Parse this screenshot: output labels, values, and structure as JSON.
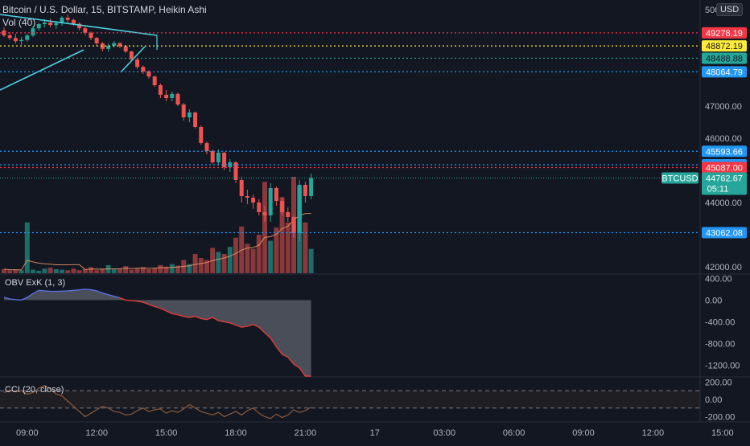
{
  "header": {
    "title": "Bitcoin / U.S. Dollar, 15, BITSTAMP, Heikin Ashi",
    "vol_label": "Vol (40)",
    "currency_badge": "USD"
  },
  "main_axis": {
    "ticks": [
      {
        "value": 50000,
        "label": "50000.00"
      },
      {
        "value": 47000,
        "label": "47000.00"
      },
      {
        "value": 46000,
        "label": "46000.00"
      },
      {
        "value": 44000,
        "label": "44000.00"
      },
      {
        "value": 42000,
        "label": "42000.00"
      }
    ],
    "range": [
      41800,
      50300
    ]
  },
  "price_levels": [
    {
      "value": 49278.19,
      "label": "49278.19",
      "color": "#f23645",
      "text_color": "#ffffff"
    },
    {
      "value": 48872.19,
      "label": "48872.19",
      "color": "#ffeb3b",
      "text_color": "#131722"
    },
    {
      "value": 48488.88,
      "label": "48488.88",
      "color": "#26a69a",
      "text_color": "#131722"
    },
    {
      "value": 48064.79,
      "label": "48064.79",
      "color": "#2196f3",
      "text_color": "#ffffff"
    },
    {
      "value": 45593.66,
      "label": "45593.66",
      "color": "#2196f3",
      "text_color": "#ffffff"
    },
    {
      "value": 45175.35,
      "label": "45175.35",
      "color": "#2196f3",
      "text_color": "#ffffff"
    },
    {
      "value": 45087.0,
      "label": "45087.00",
      "color": "#f23645",
      "text_color": "#ffffff"
    },
    {
      "value": 43062.08,
      "label": "43062.08",
      "color": "#2196f3",
      "text_color": "#ffffff"
    }
  ],
  "last_price": {
    "symbol": "BTCUSD",
    "value": 44762.67,
    "label": "44762.67",
    "countdown": "05:11",
    "color": "#26a69a"
  },
  "x_axis": {
    "ticks": [
      {
        "index": 4,
        "label": "09:00"
      },
      {
        "index": 16,
        "label": "12:00"
      },
      {
        "index": 28,
        "label": "15:00"
      },
      {
        "index": 40,
        "label": "18:00"
      },
      {
        "index": 52,
        "label": "21:00"
      },
      {
        "index": 64,
        "label": "17"
      },
      {
        "index": 76,
        "label": "03:00"
      },
      {
        "index": 88,
        "label": "06:00"
      },
      {
        "index": 100,
        "label": "09:00"
      },
      {
        "index": 112,
        "label": "12:00"
      },
      {
        "index": 124,
        "label": "15:00"
      }
    ]
  },
  "obv": {
    "label": "OBV ExK (1, 3)",
    "range": [
      -1400,
      480
    ],
    "ticks": [
      {
        "value": 400,
        "label": "400.00"
      },
      {
        "value": 0,
        "label": "0.00"
      },
      {
        "value": -400,
        "label": "-400.00"
      },
      {
        "value": -800,
        "label": "-800.00"
      },
      {
        "value": -1200,
        "label": "-1200.00"
      }
    ],
    "values": [
      50,
      20,
      10,
      0,
      50,
      120,
      180,
      170,
      160,
      160,
      165,
      170,
      180,
      190,
      200,
      190,
      170,
      130,
      100,
      70,
      40,
      0,
      -10,
      -20,
      -40,
      -80,
      -120,
      -150,
      -200,
      -250,
      -270,
      -300,
      -320,
      -300,
      -340,
      -360,
      -320,
      -380,
      -400,
      -420,
      -460,
      -500,
      -480,
      -450,
      -500,
      -600,
      -700,
      -860,
      -1000,
      -1050,
      -1180,
      -1250,
      -1400,
      -1400
    ]
  },
  "cci": {
    "label": "CCI (20, close)",
    "range": [
      -260,
      260
    ],
    "ticks": [
      {
        "value": 200,
        "label": "200.00"
      },
      {
        "value": 0,
        "label": "0.00"
      },
      {
        "value": -200,
        "label": "-200.00"
      }
    ],
    "bands": [
      100,
      -100
    ],
    "values": [
      80,
      110,
      90,
      100,
      60,
      80,
      130,
      160,
      120,
      60,
      40,
      -20,
      -80,
      -140,
      -200,
      -160,
      -120,
      -80,
      -100,
      -140,
      -150,
      -180,
      -170,
      -130,
      -100,
      -140,
      -120,
      -110,
      -160,
      -130,
      -150,
      -110,
      -60,
      -100,
      -140,
      -160,
      -180,
      -150,
      -200,
      -170,
      -140,
      -180,
      -130,
      -100,
      -160,
      -200,
      -220,
      -170,
      -210,
      -180,
      -120,
      -150,
      -130,
      -90
    ]
  },
  "chart_data": {
    "type": "candlestick",
    "title": "Bitcoin / U.S. Dollar, 15, BITSTAMP, Heikin Ashi",
    "series": [
      {
        "name": "BTCUSD",
        "ohlc": [
          [
            49350,
            49450,
            49150,
            49200
          ],
          [
            49200,
            49300,
            49050,
            49120
          ],
          [
            49120,
            49250,
            48950,
            49020
          ],
          [
            49020,
            49150,
            48900,
            49060
          ],
          [
            49060,
            49250,
            49000,
            49200
          ],
          [
            49200,
            49480,
            49150,
            49420
          ],
          [
            49420,
            49600,
            49350,
            49550
          ],
          [
            49550,
            49700,
            49450,
            49600
          ],
          [
            49600,
            49720,
            49450,
            49520
          ],
          [
            49520,
            49650,
            49400,
            49580
          ],
          [
            49580,
            49800,
            49500,
            49750
          ],
          [
            49750,
            49850,
            49600,
            49680
          ],
          [
            49680,
            49720,
            49500,
            49560
          ],
          [
            49560,
            49600,
            49350,
            49420
          ],
          [
            49420,
            49500,
            49200,
            49280
          ],
          [
            49280,
            49320,
            49050,
            49120
          ],
          [
            49120,
            49150,
            48850,
            48950
          ],
          [
            48950,
            49000,
            48700,
            48780
          ],
          [
            48780,
            48950,
            48700,
            48880
          ],
          [
            48880,
            49020,
            48820,
            48960
          ],
          [
            48960,
            48980,
            48800,
            48860
          ],
          [
            48860,
            48900,
            48650,
            48700
          ],
          [
            48700,
            48720,
            48400,
            48450
          ],
          [
            48450,
            48480,
            48150,
            48220
          ],
          [
            48220,
            48260,
            48000,
            48080
          ],
          [
            48080,
            48120,
            47850,
            47920
          ],
          [
            47920,
            47950,
            47600,
            47650
          ],
          [
            47650,
            47700,
            47250,
            47350
          ],
          [
            47350,
            47500,
            47150,
            47250
          ],
          [
            47250,
            47450,
            47150,
            47380
          ],
          [
            47380,
            47420,
            47000,
            47050
          ],
          [
            47050,
            47100,
            46550,
            46650
          ],
          [
            46650,
            46900,
            46500,
            46800
          ],
          [
            46800,
            46830,
            46300,
            46350
          ],
          [
            46350,
            46400,
            45800,
            45850
          ],
          [
            45850,
            45900,
            45500,
            45600
          ],
          [
            45600,
            45650,
            45200,
            45250
          ],
          [
            45250,
            45650,
            45150,
            45550
          ],
          [
            45550,
            45580,
            45000,
            45100
          ],
          [
            45100,
            45350,
            44950,
            45250
          ],
          [
            45250,
            45280,
            44600,
            44700
          ],
          [
            44700,
            44800,
            44000,
            44200
          ],
          [
            44200,
            44400,
            43950,
            44150
          ],
          [
            44150,
            44250,
            43800,
            44000
          ],
          [
            44000,
            44100,
            43600,
            43700
          ],
          [
            43700,
            43900,
            43400,
            43600
          ],
          [
            43600,
            44600,
            43400,
            44450
          ],
          [
            44450,
            44500,
            43900,
            44050
          ],
          [
            44050,
            44150,
            43600,
            43700
          ],
          [
            43700,
            43850,
            43400,
            43550
          ],
          [
            43550,
            43600,
            42900,
            43050
          ],
          [
            43050,
            44700,
            42800,
            44550
          ],
          [
            44550,
            44650,
            44000,
            44200
          ],
          [
            44200,
            44900,
            44100,
            44762.67
          ]
        ]
      },
      {
        "name": "Vol (40)",
        "values": [
          80,
          60,
          70,
          60,
          1000,
          70,
          50,
          90,
          110,
          80,
          70,
          60,
          90,
          60,
          80,
          120,
          60,
          80,
          160,
          80,
          90,
          140,
          70,
          90,
          120,
          80,
          100,
          160,
          130,
          180,
          150,
          260,
          180,
          380,
          300,
          260,
          500,
          420,
          380,
          520,
          700,
          920,
          580,
          480,
          760,
          1800,
          640,
          900,
          1500,
          1000,
          2000,
          1700,
          1000,
          480
        ],
        "vol_range": [
          0,
          1900
        ]
      }
    ],
    "x_labels": [
      "09:00",
      "12:00",
      "15:00",
      "18:00",
      "21:00",
      "17",
      "03:00",
      "06:00",
      "09:00",
      "12:00",
      "15:00"
    ],
    "y_ticks": [
      "50000.00",
      "47000.00",
      "46000.00",
      "44000.00",
      "42000.00"
    ],
    "ylim": [
      41800,
      50300
    ],
    "grid": false
  }
}
